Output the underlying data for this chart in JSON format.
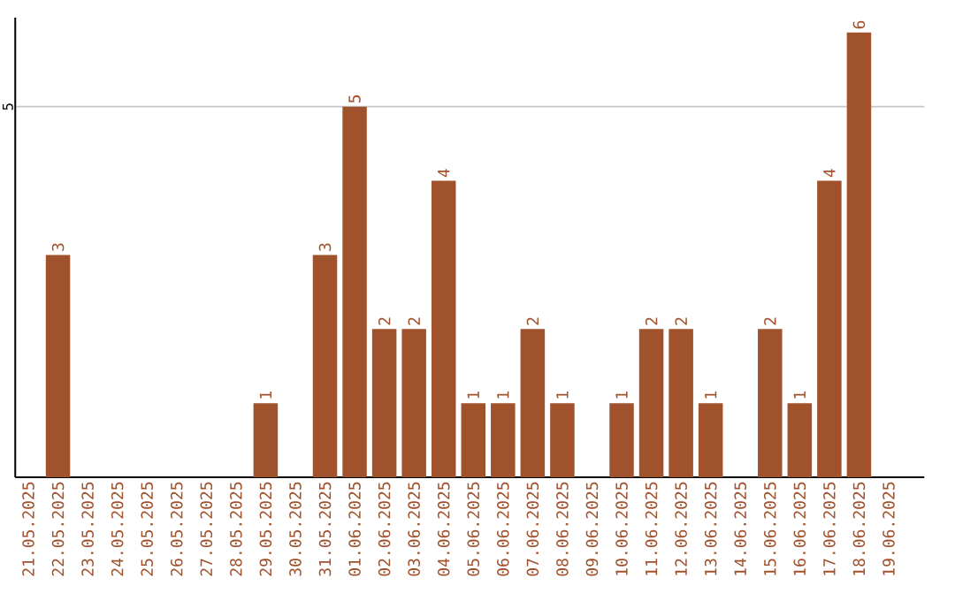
{
  "chart_data": {
    "type": "bar",
    "categories": [
      "21.05.2025",
      "22.05.2025",
      "23.05.2025",
      "24.05.2025",
      "25.05.2025",
      "26.05.2025",
      "27.05.2025",
      "28.05.2025",
      "29.05.2025",
      "30.05.2025",
      "31.05.2025",
      "01.06.2025",
      "02.06.2025",
      "03.06.2025",
      "04.06.2025",
      "05.06.2025",
      "06.06.2025",
      "07.06.2025",
      "08.06.2025",
      "09.06.2025",
      "10.06.2025",
      "11.06.2025",
      "12.06.2025",
      "13.06.2025",
      "14.06.2025",
      "15.06.2025",
      "16.06.2025",
      "17.06.2025",
      "18.06.2025",
      "19.06.2025"
    ],
    "values": [
      0,
      3,
      0,
      0,
      0,
      0,
      0,
      0,
      1,
      0,
      3,
      5,
      2,
      2,
      4,
      1,
      1,
      2,
      1,
      0,
      1,
      2,
      2,
      1,
      0,
      2,
      1,
      4,
      6,
      0
    ],
    "value_labels": [
      null,
      "3",
      null,
      null,
      null,
      null,
      null,
      null,
      "1",
      null,
      "3",
      "5",
      "2",
      "2",
      "4",
      "1",
      "1",
      "2",
      "1",
      null,
      "1",
      "2",
      "2",
      "1",
      null,
      "2",
      "1",
      "4",
      "6",
      null
    ],
    "color": "#a0522d",
    "ylim": [
      0,
      6.2
    ],
    "yticks": [
      5
    ],
    "grid": "y"
  }
}
